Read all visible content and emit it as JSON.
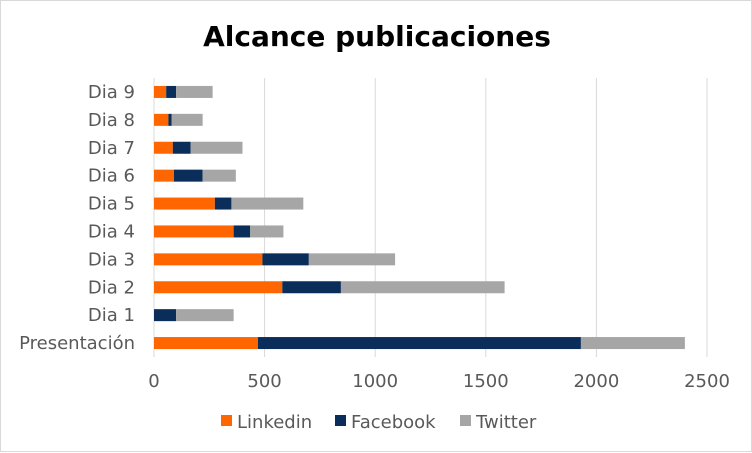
{
  "chart_data": {
    "type": "bar",
    "orientation": "horizontal",
    "stacked": true,
    "title": "Alcance publicaciones",
    "xlabel": "",
    "ylabel": "",
    "xlim": [
      0,
      2500
    ],
    "x_ticks": [
      "0",
      "500",
      "1000",
      "1500",
      "2000",
      "2500"
    ],
    "grid": true,
    "legend_position": "bottom",
    "categories": [
      "Presentación",
      "Dia 1",
      "Dia 2",
      "Dia 3",
      "Dia 4",
      "Dia 5",
      "Dia 6",
      "Dia 7",
      "Dia 8",
      "Dia 9"
    ],
    "series": [
      {
        "name": "Linkedin",
        "color": "#ff6600",
        "values": [
          470,
          0,
          580,
          490,
          360,
          275,
          90,
          85,
          65,
          55
        ]
      },
      {
        "name": "Facebook",
        "color": "#0b2d5a",
        "values": [
          1460,
          100,
          265,
          210,
          75,
          75,
          130,
          80,
          15,
          45
        ]
      },
      {
        "name": "Twitter",
        "color": "#a6a6a6",
        "values": [
          470,
          260,
          740,
          390,
          150,
          325,
          150,
          235,
          140,
          165
        ]
      }
    ]
  }
}
